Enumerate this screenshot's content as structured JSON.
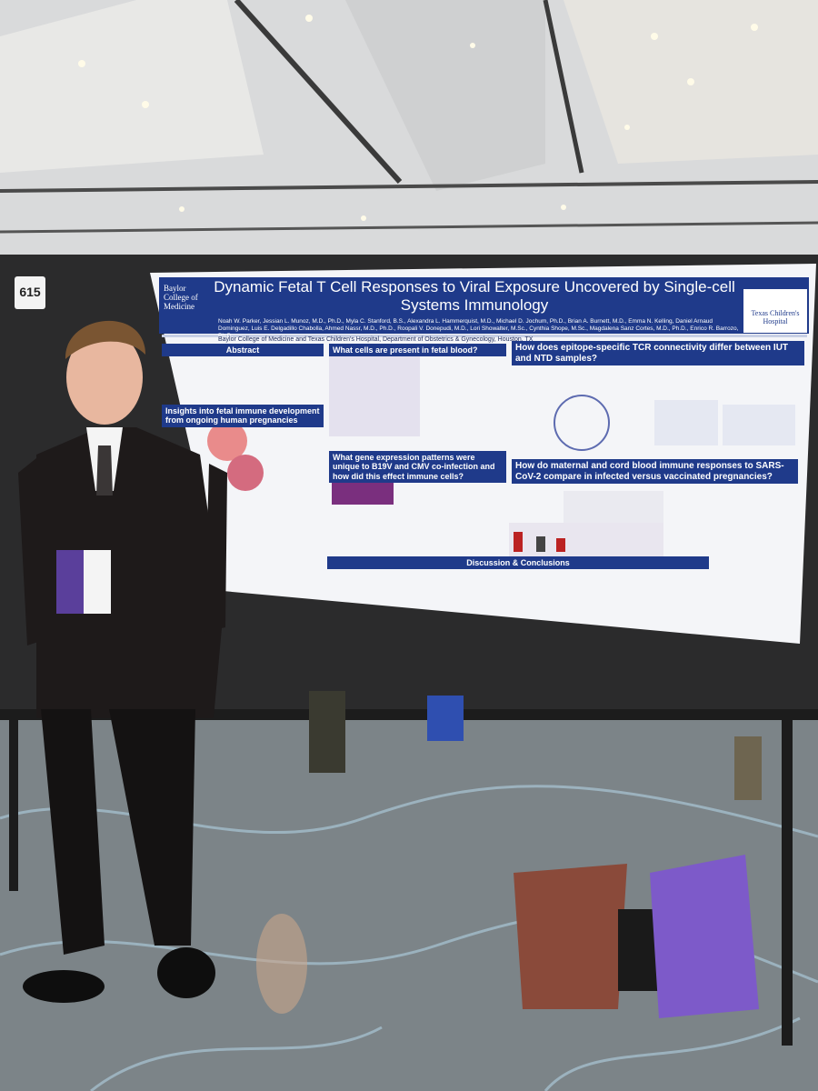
{
  "board_number": "615",
  "poster": {
    "title": "Dynamic Fetal T Cell Responses to Viral Exposure Uncovered by Single-cell Systems Immunology",
    "authors": "Noah W. Parker, Jessian L. Munoz, M.D., Ph.D., Myla C. Stanford, B.S., Alexandra L. Hammerquist, M.D., Michael D. Jochum, Ph.D., Brian A. Burnett, M.D., Emma N. Kelling, Daniel Arnaud Dominguez, Luis E. Delgadillo Chabolla, Ahmed Nassr, M.D., Ph.D., Roopali V. Donepudi, M.D., Lori Showalter, M.Sc., Cynthia Shope, M.Sc., Magdalena Sanz Cortes, M.D., Ph.D., Enrico R. Barrozo, Ph.D.",
    "affiliation": "Baylor College of Medicine and Texas Children's Hospital, Department of Obstetrics & Gynecology, Houston, TX",
    "logo_left": "Baylor College of Medicine",
    "logo_right": "Texas Children's Hospital",
    "sections": [
      "Abstract",
      "Insights into fetal immune development from ongoing human pregnancies",
      "What cells are present in fetal blood?",
      "What gene expression patterns were unique to B19V and CMV co-infection and how did this effect immune cells?",
      "How does epitope-specific TCR connectivity differ between IUT and NTD samples?",
      "How do maternal and cord blood immune responses to SARS-CoV-2 compare in infected versus vaccinated pregnancies?",
      "Discussion & Conclusions"
    ]
  }
}
